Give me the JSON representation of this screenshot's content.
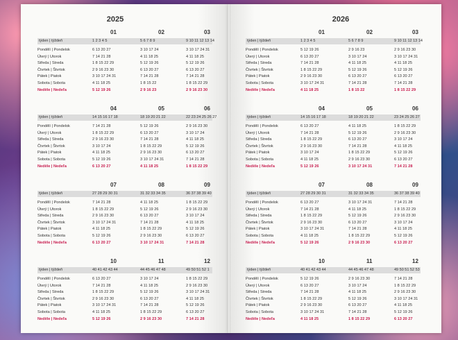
{
  "left_year": "2025",
  "right_year": "2026",
  "week_label": "týden | týždeň",
  "day_labels": [
    "Pondělí | Pondelok",
    "Úterý | Utorok",
    "Středa | Streda",
    "Čtvrtek | Štvrtok",
    "Pátek | Piatok",
    "Sobota | Sobota",
    "Neděle | Nedeľa"
  ],
  "left": [
    {
      "months": [
        "01",
        "02",
        "03"
      ],
      "weeks": [
        "1  2  3  4  5",
        "5  6  7  8  9",
        "9  10 11 12 13 14"
      ],
      "days": [
        [
          "6  13  20  27",
          "3  10  17  24",
          "3  10  17  24  31"
        ],
        [
          "7  14  21  28",
          "4  11  18  25",
          "4  11  18  25"
        ],
        [
          "1  8  15  22  29",
          "5  12  19  26",
          "5  12  19  26"
        ],
        [
          "2  9  16  23  30",
          "6  13  20  27",
          "6  13  20  27"
        ],
        [
          "3  10  17  24  31",
          "7  14  21  28",
          "7  14  21  28"
        ],
        [
          "4  11  18  25",
          "1  8  15  22",
          "1  8  15  22  29"
        ],
        [
          "5  12  19  26",
          "2  9  16  23",
          "2  9  16  23  30"
        ]
      ]
    },
    {
      "months": [
        "04",
        "05",
        "06"
      ],
      "weeks": [
        "14 15 16 17 18",
        "18 19 20 21 22",
        "22 23 24 25 26 27"
      ],
      "days": [
        [
          "7  14  21  28",
          "5  12  19  26",
          "2  9  16  23  30"
        ],
        [
          "1  8  15  22  29",
          "6  13  20  27",
          "3  10  17  24"
        ],
        [
          "2  9  16  23  30",
          "7  14  21  28",
          "4  11  18  25"
        ],
        [
          "3  10  17  24",
          "1  8  15  22  29",
          "5  12  19  26"
        ],
        [
          "4  11  18  25",
          "2  9  16  23  30",
          "6  13  20  27"
        ],
        [
          "5  12  19  26",
          "3  10  17  24  31",
          "7  14  21  28"
        ],
        [
          "6  13  20  27",
          "4  11  18  25",
          "1  8  15  22  29"
        ]
      ]
    },
    {
      "months": [
        "07",
        "08",
        "09"
      ],
      "weeks": [
        "27 28 29 30 31",
        "31 32 33 34 35",
        "36 37 38 39 40"
      ],
      "days": [
        [
          "7  14  21  28",
          "4  11  18  25",
          "1  8  15  22  29"
        ],
        [
          "1  8  15  22  29",
          "5  12  19  26",
          "2  9  16  23  30"
        ],
        [
          "2  9  16  23  30",
          "6  13  20  27",
          "3  10  17  24"
        ],
        [
          "3  10  17  24  31",
          "7  14  21  28",
          "4  11  18  25"
        ],
        [
          "4  11  18  25",
          "1  8  15  22  29",
          "5  12  19  26"
        ],
        [
          "5  12  19  26",
          "2  9  16  23  30",
          "6  13  20  27"
        ],
        [
          "6  13  20  27",
          "3  10  17  24  31",
          "7  14  21  28"
        ]
      ]
    },
    {
      "months": [
        "10",
        "11",
        "12"
      ],
      "weeks": [
        "40 41 42 43 44",
        "44 45 46 47 48",
        "49 50 51 52 1"
      ],
      "days": [
        [
          "6  13  20  27",
          "3  10  17  24",
          "1  8  15  22  29"
        ],
        [
          "7  14  21  28",
          "4  11  18  25",
          "2  9  16  23  30"
        ],
        [
          "1  8  15  22  29",
          "5  12  19  26",
          "3  10  17  24  31"
        ],
        [
          "2  9  16  23  30",
          "6  13  20  27",
          "4  11  18  25"
        ],
        [
          "3  10  17  24  31",
          "7  14  21  28",
          "5  12  19  26"
        ],
        [
          "4  11  18  25",
          "1  8  15  22  29",
          "6  13  20  27"
        ],
        [
          "5  12  19  26",
          "2  9  16  23  30",
          "7  14  21  28"
        ]
      ]
    }
  ],
  "right": [
    {
      "months": [
        "01",
        "02",
        "03"
      ],
      "weeks": [
        "1  2  3  4  5",
        "5  6  7  8  9",
        "9  10 11 12 13 14"
      ],
      "days": [
        [
          "5  12  19  26",
          "2  9  16  23",
          "2  9  16  23  30"
        ],
        [
          "6  13  20  27",
          "3  10  17  24",
          "3  10  17  24  31"
        ],
        [
          "7  14  21  28",
          "4  11  18  25",
          "4  11  18  25"
        ],
        [
          "1  8  15  22  29",
          "5  12  19  26",
          "5  12  19  26"
        ],
        [
          "2  9  16  23  30",
          "6  13  20  27",
          "6  13  20  27"
        ],
        [
          "3  10  17  24  31",
          "7  14  21  28",
          "7  14  21  28"
        ],
        [
          "4  11  18  25",
          "1  8  15  22",
          "1  8  15  22  29"
        ]
      ]
    },
    {
      "months": [
        "04",
        "05",
        "06"
      ],
      "weeks": [
        "14 15 16 17 18",
        "18 19 20 21 22",
        "23 24 25 26 27"
      ],
      "days": [
        [
          "6  13  20  27",
          "4  11  18  25",
          "1  8  15  22  29"
        ],
        [
          "7  14  21  28",
          "5  12  19  26",
          "2  9  16  23  30"
        ],
        [
          "1  8  15  22  29",
          "6  13  20  27",
          "3  10  17  24"
        ],
        [
          "2  9  16  23  30",
          "7  14  21  28",
          "4  11  18  25"
        ],
        [
          "3  10  17  24",
          "1  8  15  22  29",
          "5  12  19  26"
        ],
        [
          "4  11  18  25",
          "2  9  16  23  30",
          "6  13  20  27"
        ],
        [
          "5  12  19  26",
          "3  10  17  24  31",
          "7  14  21  28"
        ]
      ]
    },
    {
      "months": [
        "07",
        "08",
        "09"
      ],
      "weeks": [
        "27 28 29 30 31",
        "31 32 33 34 35",
        "36 37 38 39 40"
      ],
      "days": [
        [
          "6  13  20  27",
          "3  10  17  24  31",
          "7  14  21  28"
        ],
        [
          "7  14  21  28",
          "4  11  18  25",
          "1  8  15  22  29"
        ],
        [
          "1  8  15  22  29",
          "5  12  19  26",
          "2  9  16  23  30"
        ],
        [
          "2  9  16  23  30",
          "6  13  20  27",
          "3  10  17  24"
        ],
        [
          "3  10  17  24  31",
          "7  14  21  28",
          "4  11  18  25"
        ],
        [
          "4  11  18  25",
          "1  8  15  22  29",
          "5  12  19  26"
        ],
        [
          "5  12  19  26",
          "2  9  16  23  30",
          "6  13  20  27"
        ]
      ]
    },
    {
      "months": [
        "10",
        "11",
        "12"
      ],
      "weeks": [
        "40 41 42 43 44",
        "44 45 46 47 48",
        "49 50 51 52 53"
      ],
      "days": [
        [
          "5  12  19  26",
          "2  9  16  23  30",
          "7  14  21  28"
        ],
        [
          "6  13  20  27",
          "3  10  17  24",
          "1  8  15  22  29"
        ],
        [
          "7  14  21  28",
          "4  11  18  25",
          "2  9  16  23  30"
        ],
        [
          "1  8  15  22  29",
          "5  12  19  26",
          "3  10  17  24  31"
        ],
        [
          "2  9  16  23  30",
          "6  13  20  27",
          "4  11  18  25"
        ],
        [
          "3  10  17  24  31",
          "7  14  21  28",
          "5  12  19  26"
        ],
        [
          "4  11  18  25",
          "1  8  15  22  29",
          "6  13  20  27"
        ]
      ]
    }
  ],
  "accent_color": "#c81e50"
}
